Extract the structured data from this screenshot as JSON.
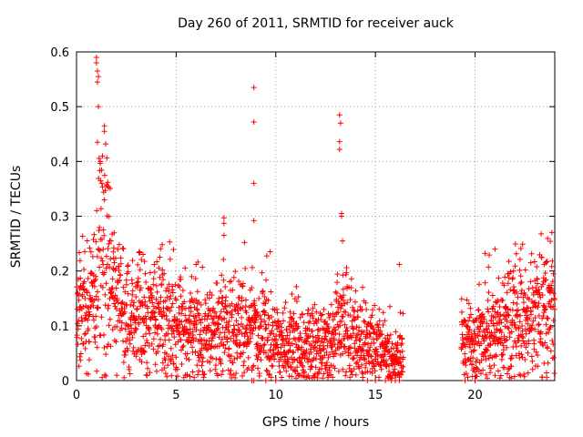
{
  "chart_data": {
    "type": "scatter",
    "title": "Day 260 of 2011, SRMTID for receiver auck",
    "xlabel": "GPS time / hours",
    "ylabel": "SRMTID / TECUs",
    "xlim": [
      0,
      24
    ],
    "ylim": [
      0,
      0.6
    ],
    "x_ticks": [
      0,
      5,
      10,
      15,
      20
    ],
    "x_tick_labels": [
      "0",
      "5",
      "10",
      "15",
      "20"
    ],
    "y_ticks": [
      0,
      0.1,
      0.2,
      0.3,
      0.4,
      0.5,
      0.6
    ],
    "y_tick_labels": [
      "0",
      "0.1",
      "0.2",
      "0.3",
      "0.4",
      "0.5",
      "0.6"
    ],
    "grid": true,
    "marker": "+",
    "color": "#ff0000",
    "baseline_profile": {
      "x": [
        0,
        0.5,
        1.0,
        1.2,
        1.5,
        2.0,
        2.5,
        3.0,
        4.0,
        4.3,
        5.0,
        6.0,
        7.0,
        7.5,
        8.0,
        8.5,
        9.0,
        9.5,
        10.0,
        11.0,
        12.0,
        13.0,
        13.3,
        14.0,
        15.0,
        15.5,
        16.0,
        16.3
      ],
      "y": [
        0.12,
        0.11,
        0.17,
        0.25,
        0.22,
        0.15,
        0.12,
        0.11,
        0.11,
        0.14,
        0.1,
        0.085,
        0.085,
        0.1,
        0.09,
        0.1,
        0.08,
        0.1,
        0.06,
        0.07,
        0.06,
        0.07,
        0.12,
        0.08,
        0.06,
        0.05,
        0.04,
        0.05
      ]
    },
    "baseline_profile_2": {
      "x": [
        19.3,
        20.0,
        21.0,
        22.0,
        23.0,
        24.0
      ],
      "y": [
        0.06,
        0.07,
        0.08,
        0.11,
        0.12,
        0.14
      ]
    },
    "data_gap_hours": [
      16.4,
      19.3
    ],
    "spikes": [
      {
        "x": 1.0,
        "y": 0.59
      },
      {
        "x": 1.0,
        "y": 0.58
      },
      {
        "x": 1.05,
        "y": 0.565
      },
      {
        "x": 1.1,
        "y": 0.555
      },
      {
        "x": 1.05,
        "y": 0.545
      },
      {
        "x": 1.1,
        "y": 0.5
      },
      {
        "x": 1.05,
        "y": 0.435
      },
      {
        "x": 1.4,
        "y": 0.465
      },
      {
        "x": 1.4,
        "y": 0.455
      },
      {
        "x": 1.3,
        "y": 0.41
      },
      {
        "x": 1.2,
        "y": 0.4
      },
      {
        "x": 1.4,
        "y": 0.33
      },
      {
        "x": 8.9,
        "y": 0.535
      },
      {
        "x": 8.9,
        "y": 0.472
      },
      {
        "x": 8.9,
        "y": 0.36
      },
      {
        "x": 8.9,
        "y": 0.292
      },
      {
        "x": 7.4,
        "y": 0.297
      },
      {
        "x": 7.4,
        "y": 0.287
      },
      {
        "x": 7.4,
        "y": 0.265
      },
      {
        "x": 13.2,
        "y": 0.485
      },
      {
        "x": 13.25,
        "y": 0.47
      },
      {
        "x": 13.2,
        "y": 0.436
      },
      {
        "x": 13.2,
        "y": 0.422
      },
      {
        "x": 13.3,
        "y": 0.305
      },
      {
        "x": 13.3,
        "y": 0.3
      },
      {
        "x": 13.35,
        "y": 0.255
      },
      {
        "x": 4.3,
        "y": 0.248
      },
      {
        "x": 6.0,
        "y": 0.212
      },
      {
        "x": 16.2,
        "y": 0.212
      },
      {
        "x": 21.0,
        "y": 0.24
      },
      {
        "x": 22.3,
        "y": 0.241
      },
      {
        "x": 20.5,
        "y": 0.232
      }
    ],
    "zero_points_hours": [
      8.8,
      8.9,
      9.5,
      10.0,
      14.6,
      15.0,
      15.5,
      15.8,
      16.0,
      16.2,
      19.5,
      20.0
    ]
  }
}
